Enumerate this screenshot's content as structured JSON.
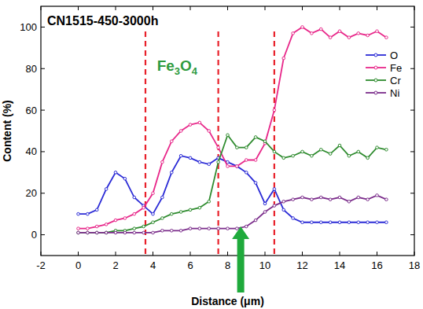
{
  "chart_data": {
    "type": "line",
    "title": "CN1515-450-3000h",
    "x_label": "Distance (μm)",
    "y_label": "Content (%)",
    "x": [
      0,
      0.5,
      1,
      1.5,
      2,
      2.5,
      3,
      3.5,
      4,
      4.5,
      5,
      5.5,
      6,
      6.5,
      7,
      7.5,
      8,
      8.5,
      9,
      9.5,
      10,
      10.5,
      11,
      11.5,
      12,
      12.5,
      13,
      13.5,
      14,
      14.5,
      15,
      15.5,
      16,
      16.5
    ],
    "series": [
      {
        "name": "O",
        "color": "#2b2bd6",
        "marker": "dot",
        "line_style": "solid",
        "values": [
          10,
          10,
          12,
          22,
          30,
          27,
          18,
          14,
          10,
          18,
          30,
          38,
          37,
          35,
          34,
          37,
          35,
          33,
          30,
          25,
          15,
          22,
          12,
          8,
          6,
          6,
          6,
          6,
          6,
          6,
          6,
          6,
          6,
          6
        ]
      },
      {
        "name": "Fe",
        "color": "#e8288a",
        "marker": "dot",
        "line_style": "solid",
        "values": [
          3,
          3,
          4,
          5,
          7,
          8,
          10,
          13,
          20,
          35,
          45,
          50,
          53,
          54,
          50,
          42,
          33,
          33,
          36,
          36,
          44,
          60,
          85,
          97,
          100,
          97,
          99,
          95,
          98,
          95,
          97,
          96,
          98,
          95
        ]
      },
      {
        "name": "Cr",
        "color": "#2e8b2e",
        "marker": "dot",
        "line_style": "solid",
        "values": [
          1,
          1,
          1,
          1,
          2,
          2,
          3,
          4,
          6,
          8,
          10,
          11,
          12,
          13,
          16,
          35,
          48,
          42,
          42,
          47,
          45,
          40,
          37,
          38,
          40,
          38,
          41,
          39,
          43,
          38,
          40,
          37,
          42,
          41
        ]
      },
      {
        "name": "Ni",
        "color": "#7b2d8b",
        "marker": "dot",
        "line_style": "solid",
        "values": [
          1,
          1,
          1,
          1,
          1,
          1,
          1,
          1,
          1,
          2,
          2,
          2,
          3,
          3,
          3,
          3,
          3,
          3,
          4,
          7,
          11,
          14,
          16,
          17,
          18,
          17,
          18,
          17,
          18,
          16,
          18,
          17,
          19,
          17
        ]
      }
    ],
    "xlim": [
      -2,
      18
    ],
    "xticks": [
      -2,
      0,
      2,
      4,
      6,
      8,
      10,
      12,
      14,
      16,
      18
    ],
    "ylim": [
      -10,
      110
    ],
    "yticks": [
      0,
      20,
      40,
      60,
      80,
      100
    ],
    "grid": false,
    "legend": "upper right",
    "vlines": [
      3.6,
      7.5,
      10.5
    ],
    "annotations": [
      {
        "text": "Fe3O4",
        "x": 5.3,
        "y": 79,
        "color": "#2e9b3e"
      }
    ],
    "arrow_x": 8.7
  }
}
